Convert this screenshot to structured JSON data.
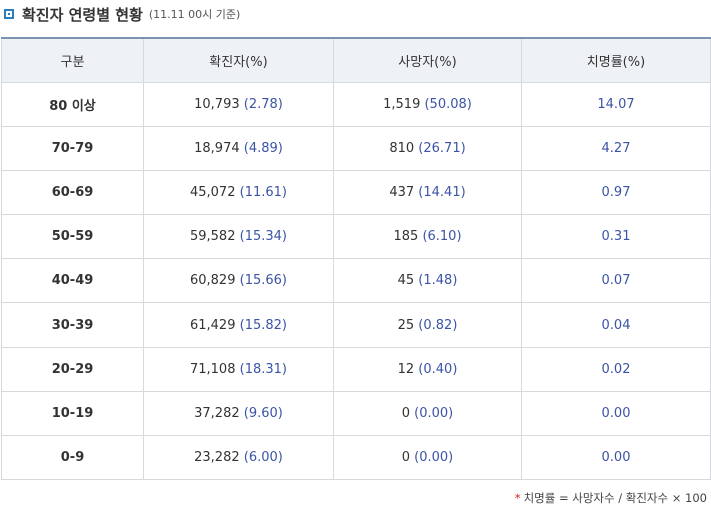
{
  "header": {
    "title": "확진자 연령별 현황",
    "subtitle": "(11.11 00시 기준)"
  },
  "table": {
    "columns": [
      "구분",
      "확진자(%)",
      "사망자(%)",
      "치명률(%)"
    ],
    "rows": [
      {
        "group": "80 이상",
        "cases": "10,793",
        "cases_pct": "(2.78)",
        "deaths": "1,519",
        "deaths_pct": "(50.08)",
        "cfr": "14.07"
      },
      {
        "group": "70-79",
        "cases": "18,974",
        "cases_pct": "(4.89)",
        "deaths": "810",
        "deaths_pct": "(26.71)",
        "cfr": "4.27"
      },
      {
        "group": "60-69",
        "cases": "45,072",
        "cases_pct": "(11.61)",
        "deaths": "437",
        "deaths_pct": "(14.41)",
        "cfr": "0.97"
      },
      {
        "group": "50-59",
        "cases": "59,582",
        "cases_pct": "(15.34)",
        "deaths": "185",
        "deaths_pct": "(6.10)",
        "cfr": "0.31"
      },
      {
        "group": "40-49",
        "cases": "60,829",
        "cases_pct": "(15.66)",
        "deaths": "45",
        "deaths_pct": "(1.48)",
        "cfr": "0.07"
      },
      {
        "group": "30-39",
        "cases": "61,429",
        "cases_pct": "(15.82)",
        "deaths": "25",
        "deaths_pct": "(0.82)",
        "cfr": "0.04"
      },
      {
        "group": "20-29",
        "cases": "71,108",
        "cases_pct": "(18.31)",
        "deaths": "12",
        "deaths_pct": "(0.40)",
        "cfr": "0.02"
      },
      {
        "group": "10-19",
        "cases": "37,282",
        "cases_pct": "(9.60)",
        "deaths": "0",
        "deaths_pct": "(0.00)",
        "cfr": "0.00"
      },
      {
        "group": "0-9",
        "cases": "23,282",
        "cases_pct": "(6.00)",
        "deaths": "0",
        "deaths_pct": "(0.00)",
        "cfr": "0.00"
      }
    ]
  },
  "footnote": {
    "marker": "*",
    "text": "치명률 = 사망자수 / 확진자수 × 100"
  }
}
